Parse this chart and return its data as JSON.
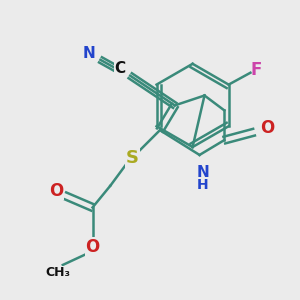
{
  "background_color": "#ebebeb",
  "bond_color": "#3a8a7a",
  "bond_width": 1.8,
  "figsize": [
    3.0,
    3.0
  ],
  "dpi": 100,
  "colors": {
    "F": "#cc44aa",
    "N": "#2244cc",
    "O": "#cc2222",
    "S": "#aaaa22",
    "C": "#111111",
    "bond": "#3a8a7a"
  }
}
